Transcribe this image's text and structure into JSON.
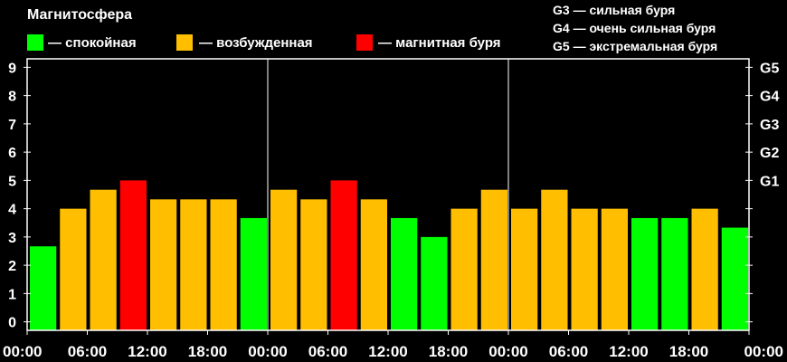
{
  "chart_data": {
    "type": "bar",
    "title": "Магнитосфера",
    "legend_left": [
      {
        "label": "— спокойная",
        "color": "#00ff00"
      },
      {
        "label": "— возбужденная",
        "color": "#ffbf00"
      },
      {
        "label": "— магнитная буря",
        "color": "#ff0000"
      }
    ],
    "legend_right": [
      "G3 — сильная буря",
      "G4 — очень сильная буря",
      "G5 — экстремальная буря"
    ],
    "y_ticks": [
      "0",
      "1",
      "2",
      "3",
      "4",
      "5",
      "6",
      "7",
      "8",
      "9"
    ],
    "ylim": [
      -0.3,
      9.3
    ],
    "g_ticks": [
      {
        "label": "G1",
        "value": 5
      },
      {
        "label": "G2",
        "value": 6
      },
      {
        "label": "G3",
        "value": 7
      },
      {
        "label": "G4",
        "value": 8
      },
      {
        "label": "G5",
        "value": 9
      }
    ],
    "x_ticks": [
      "00:00",
      "06:00",
      "12:00",
      "18:00",
      "00:00",
      "06:00",
      "12:00",
      "18:00",
      "00:00",
      "06:00",
      "12:00",
      "18:00",
      "00:00"
    ],
    "values": [
      2.67,
      4.0,
      4.67,
      5.0,
      4.33,
      4.33,
      4.33,
      3.67,
      4.67,
      4.33,
      5.0,
      4.33,
      3.67,
      3.0,
      4.0,
      4.67,
      4.0,
      4.67,
      4.0,
      4.0,
      3.67,
      3.67,
      4.0,
      3.33
    ],
    "colors": [
      "#00ff00",
      "#ffbf00",
      "#ffbf00",
      "#ff0000",
      "#ffbf00",
      "#ffbf00",
      "#ffbf00",
      "#00ff00",
      "#ffbf00",
      "#ffbf00",
      "#ff0000",
      "#ffbf00",
      "#00ff00",
      "#00ff00",
      "#ffbf00",
      "#ffbf00",
      "#ffbf00",
      "#ffbf00",
      "#ffbf00",
      "#ffbf00",
      "#00ff00",
      "#00ff00",
      "#ffbf00",
      "#00ff00"
    ],
    "day_separators": [
      8,
      16
    ]
  }
}
